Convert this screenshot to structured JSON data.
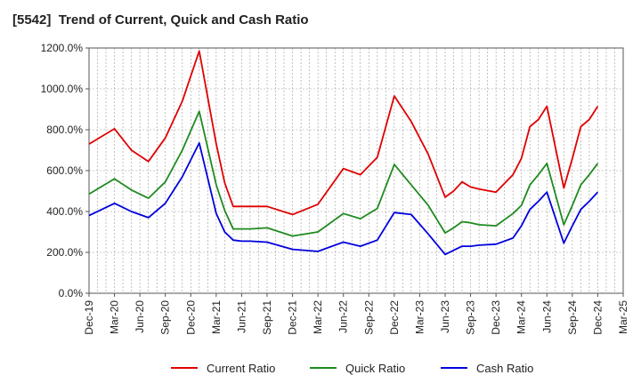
{
  "chart_data": {
    "type": "line",
    "title": "[5542]  Trend of Current, Quick and Cash Ratio",
    "xlabel": "",
    "ylabel": "",
    "ylim": [
      0,
      1200
    ],
    "y_ticks": [
      0,
      200,
      400,
      600,
      800,
      1000,
      1200
    ],
    "y_tick_labels": [
      "0.0%",
      "200.0%",
      "400.0%",
      "600.0%",
      "800.0%",
      "1000.0%",
      "1200.0%"
    ],
    "x_tick_labels": [
      "Dec-19",
      "Mar-20",
      "Jun-20",
      "Sep-20",
      "Dec-20",
      "Mar-21",
      "Jun-21",
      "Sep-21",
      "Dec-21",
      "Mar-22",
      "Jun-22",
      "Sep-22",
      "Dec-22",
      "Mar-23",
      "Jun-23",
      "Sep-23",
      "Dec-23",
      "Mar-24",
      "Jun-24",
      "Sep-24",
      "Dec-24",
      "Mar-25"
    ],
    "months_total": 63,
    "series": [
      {
        "name": "Current Ratio",
        "color": "#e00000",
        "x": [
          0,
          3,
          5,
          7,
          9,
          11,
          13,
          15,
          16,
          17,
          18,
          19,
          21,
          24,
          27,
          30,
          32,
          34,
          36,
          38,
          40,
          42,
          43,
          44,
          45,
          46,
          48,
          50,
          51,
          52,
          53,
          54,
          56,
          57,
          58,
          59,
          60
        ],
        "values": [
          730,
          805,
          700,
          645,
          760,
          940,
          1185,
          730,
          540,
          425,
          425,
          425,
          425,
          385,
          435,
          610,
          580,
          665,
          965,
          840,
          680,
          470,
          500,
          545,
          520,
          510,
          495,
          580,
          660,
          815,
          850,
          915,
          515,
          660,
          815,
          850,
          915
        ]
      },
      {
        "name": "Quick Ratio",
        "color": "#1f8a1f",
        "x": [
          0,
          3,
          5,
          7,
          9,
          11,
          13,
          15,
          16,
          17,
          18,
          19,
          21,
          24,
          27,
          30,
          32,
          34,
          36,
          38,
          40,
          42,
          43,
          44,
          45,
          46,
          48,
          50,
          51,
          52,
          53,
          54,
          56,
          57,
          58,
          59,
          60
        ],
        "values": [
          485,
          560,
          505,
          465,
          545,
          700,
          890,
          530,
          405,
          315,
          315,
          315,
          320,
          280,
          300,
          390,
          365,
          415,
          630,
          530,
          430,
          295,
          320,
          350,
          345,
          335,
          330,
          390,
          430,
          530,
          580,
          635,
          335,
          430,
          530,
          580,
          635
        ]
      },
      {
        "name": "Cash Ratio",
        "color": "#0000dd",
        "x": [
          0,
          3,
          5,
          7,
          9,
          11,
          13,
          15,
          16,
          17,
          18,
          19,
          21,
          24,
          27,
          30,
          32,
          34,
          36,
          38,
          40,
          42,
          43,
          44,
          45,
          46,
          48,
          50,
          51,
          52,
          53,
          54,
          56,
          57,
          58,
          59,
          60
        ],
        "values": [
          380,
          440,
          400,
          370,
          440,
          570,
          735,
          390,
          300,
          260,
          255,
          255,
          250,
          215,
          205,
          250,
          230,
          260,
          395,
          385,
          290,
          190,
          210,
          230,
          230,
          235,
          240,
          270,
          330,
          410,
          450,
          495,
          245,
          330,
          410,
          450,
          495
        ]
      }
    ],
    "legend": [
      "Current Ratio",
      "Quick Ratio",
      "Cash Ratio"
    ],
    "legend_position": "bottom",
    "grid": true
  }
}
